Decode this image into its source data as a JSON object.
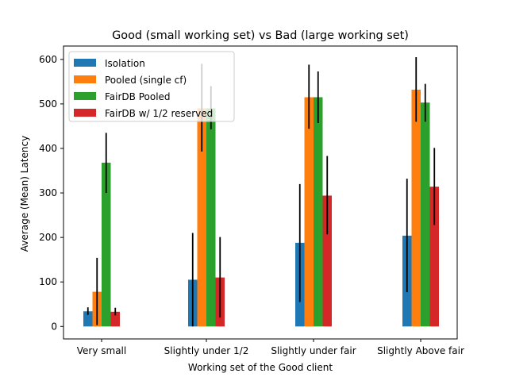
{
  "chart_data": {
    "type": "bar",
    "title": "Good (small working set) vs Bad (large working set)",
    "xlabel": "Working set of the Good client",
    "ylabel": "Average (Mean) Latency",
    "categories": [
      "Very small",
      "Slightly under 1/2",
      "Slightly under fair",
      "Slightly Above fair"
    ],
    "ylim": [
      -28,
      630
    ],
    "yticks": [
      0,
      100,
      200,
      300,
      400,
      500,
      600
    ],
    "legend_position": "top-left",
    "grid": false,
    "series": [
      {
        "name": "Isolation",
        "color": "#1f77b4",
        "values": [
          34,
          105,
          188,
          204
        ],
        "err_low": [
          26,
          0,
          55,
          77
        ],
        "err_high": [
          43,
          210,
          320,
          332
        ]
      },
      {
        "name": "Pooled (single cf)",
        "color": "#ff7f0e",
        "values": [
          78,
          490,
          515,
          532
        ],
        "err_low": [
          3,
          393,
          444,
          460
        ],
        "err_high": [
          154,
          590,
          588,
          605
        ]
      },
      {
        "name": "FairDB Pooled",
        "color": "#2ca02c",
        "values": [
          368,
          490,
          515,
          503
        ],
        "err_low": [
          300,
          443,
          457,
          460
        ],
        "err_high": [
          435,
          540,
          573,
          545
        ]
      },
      {
        "name": "FairDB w/ 1/2 reserved",
        "color": "#d62728",
        "values": [
          33,
          110,
          294,
          314
        ],
        "err_low": [
          25,
          20,
          207,
          228
        ],
        "err_high": [
          42,
          201,
          383,
          401
        ]
      }
    ]
  }
}
